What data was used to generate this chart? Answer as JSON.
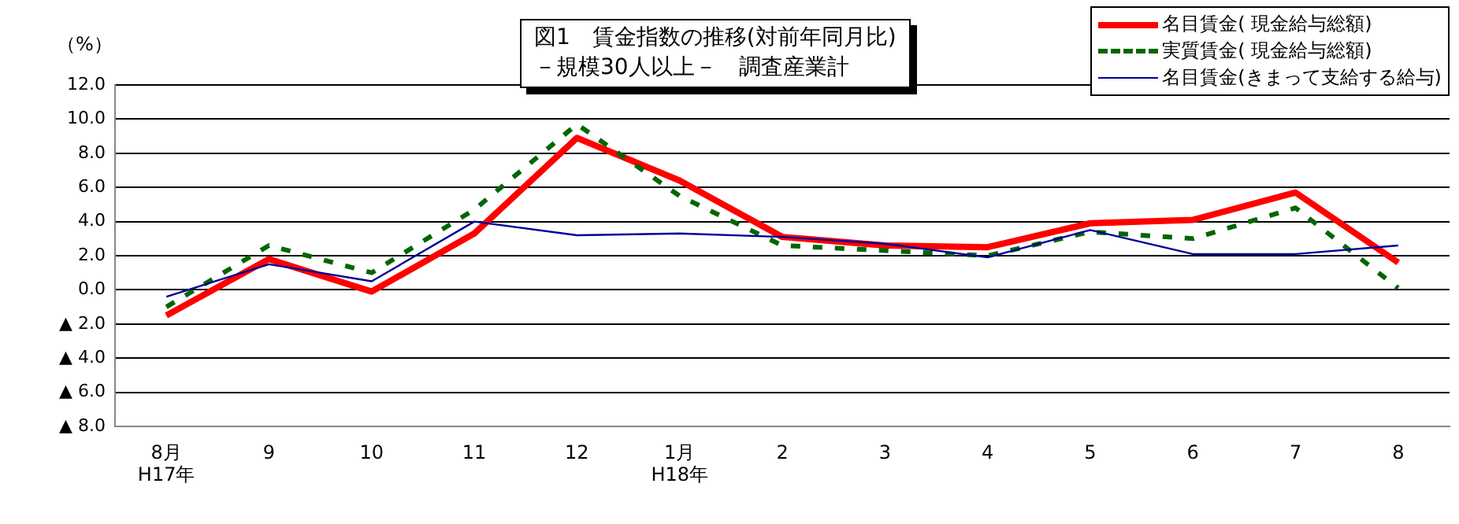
{
  "chart_data": {
    "type": "line",
    "title": "図1　賃金指数の推移(対前年同月比)\n－規模30人以上－　調査産業計",
    "ylabel": "（%）",
    "categories": [
      "8月\nH17年",
      "9",
      "10",
      "11",
      "12",
      "1月\nH18年",
      "2",
      "3",
      "4",
      "5",
      "6",
      "7",
      "8"
    ],
    "series": [
      {
        "name": "名目賃金( 現金給与総額)",
        "color": "#ff0000",
        "line_style": "solid",
        "values": [
          -1.5,
          1.8,
          -0.1,
          3.3,
          8.9,
          6.4,
          3.1,
          2.6,
          2.5,
          3.9,
          4.1,
          5.7,
          1.6
        ]
      },
      {
        "name": "実質賃金( 現金給与総額)",
        "color": "#006600",
        "line_style": "dashed",
        "values": [
          -1.0,
          2.6,
          1.0,
          4.7,
          9.7,
          5.5,
          2.6,
          2.3,
          2.0,
          3.4,
          3.0,
          4.8,
          0.1
        ]
      },
      {
        "name": "名目賃金(きまって支給する給与)",
        "color": "#000099",
        "line_style": "solid",
        "values": [
          -0.4,
          1.5,
          0.5,
          4.0,
          3.2,
          3.3,
          3.1,
          2.7,
          1.9,
          3.5,
          2.1,
          2.1,
          2.6
        ]
      }
    ],
    "ylim": [
      -8,
      12
    ],
    "yticks": [
      {
        "value": -8,
        "label": "▲ 8.0"
      },
      {
        "value": -6,
        "label": "▲ 6.0"
      },
      {
        "value": -4,
        "label": "▲ 4.0"
      },
      {
        "value": -2,
        "label": "▲ 2.0"
      },
      {
        "value": 0,
        "label": "0.0"
      },
      {
        "value": 2,
        "label": "2.0"
      },
      {
        "value": 4,
        "label": "4.0"
      },
      {
        "value": 6,
        "label": "6.0"
      },
      {
        "value": 8,
        "label": "8.0"
      },
      {
        "value": 10,
        "label": "10.0"
      },
      {
        "value": 12,
        "label": "12.0"
      }
    ],
    "grid": "y",
    "legend": "top right",
    "marker": "none"
  }
}
